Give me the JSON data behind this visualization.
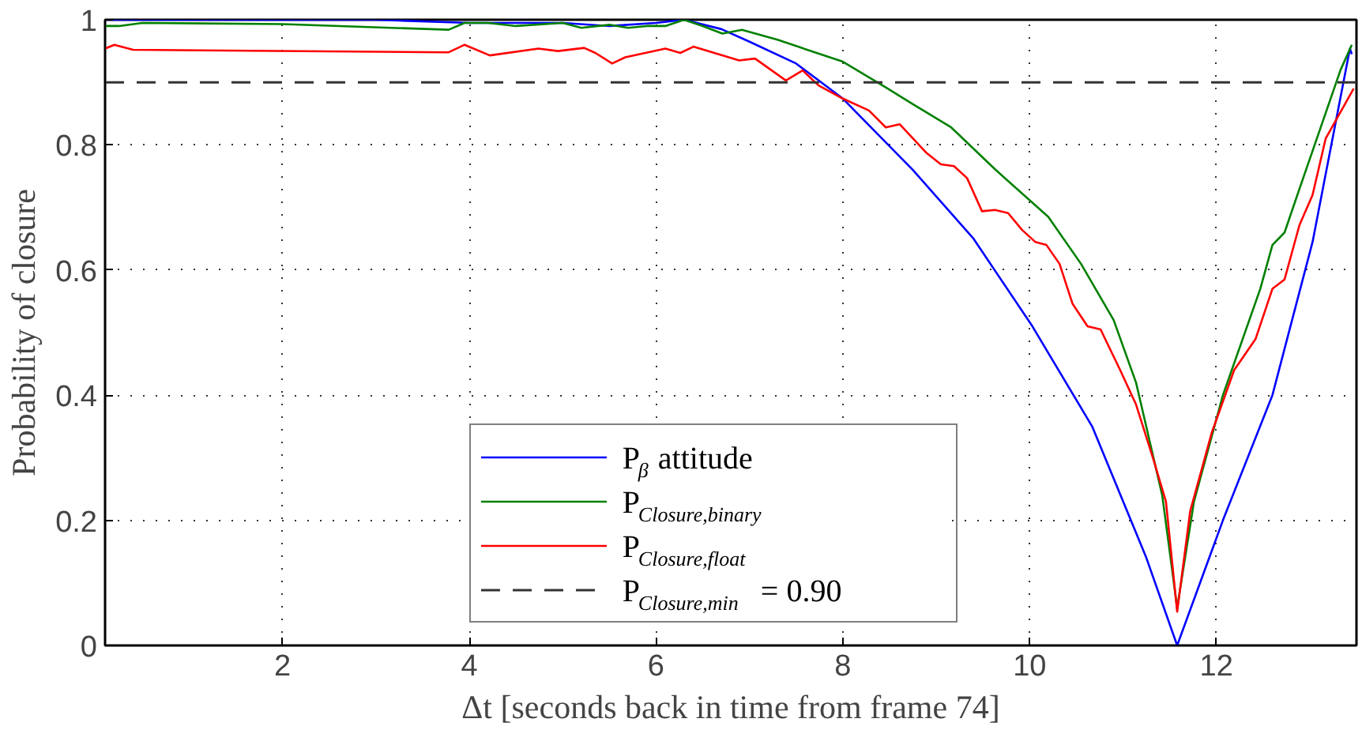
{
  "chart_data": {
    "type": "line",
    "xlabel": "Δt [seconds back in time from frame 74]",
    "ylabel": "Probability of closure",
    "xlim": [
      0.1,
      13.5
    ],
    "ylim": [
      0,
      1
    ],
    "xticks": [
      2,
      4,
      6,
      8,
      10,
      12
    ],
    "yticks": [
      0,
      0.2,
      0.4,
      0.6,
      0.8,
      1
    ],
    "grid": true,
    "legend": "bottom",
    "line_style": "solid",
    "marker": "none",
    "ref_lines": [
      {
        "axis": "y",
        "value": 0.9,
        "label": "P$_{Closure,min}$ = 0.90",
        "color": "#333333",
        "line_style": "dashed"
      }
    ],
    "series": [
      {
        "name": "P$_{β}$ attitude",
        "color": "#0000ff",
        "x": [
          0.1,
          1,
          2,
          3,
          4,
          5,
          5.5,
          6,
          6.3,
          6.7,
          7.0,
          7.5,
          8.0,
          8.75,
          9.4,
          10.03,
          10.67,
          11.25,
          11.58,
          12.07,
          12.6,
          13.03,
          13.43,
          13.45
        ],
        "values": [
          1.0,
          1.0,
          1.0,
          1.0,
          0.995,
          0.995,
          0.99,
          0.995,
          1.0,
          0.985,
          0.965,
          0.93,
          0.874,
          0.76,
          0.65,
          0.51,
          0.35,
          0.14,
          0.0,
          0.2,
          0.4,
          0.645,
          0.954,
          0.945
        ]
      },
      {
        "name": "P$_{Closure,binary}$",
        "color": "#008000",
        "x": [
          0.1,
          0.25,
          0.5,
          2,
          3.78,
          3.95,
          4.2,
          4.5,
          5.0,
          5.2,
          5.5,
          5.7,
          5.9,
          6.1,
          6.3,
          6.5,
          6.71,
          6.92,
          7.3,
          8.0,
          8.46,
          8.75,
          9.16,
          9.63,
          10.2,
          10.55,
          10.9,
          11.14,
          11.42,
          11.58,
          11.76,
          12.07,
          12.47,
          12.6,
          12.73,
          12.89,
          13.33,
          13.45
        ],
        "values": [
          0.99,
          0.99,
          0.995,
          0.993,
          0.984,
          0.995,
          0.995,
          0.99,
          0.995,
          0.987,
          0.992,
          0.987,
          0.99,
          0.99,
          1.0,
          0.99,
          0.978,
          0.984,
          0.968,
          0.933,
          0.892,
          0.865,
          0.828,
          0.761,
          0.685,
          0.61,
          0.52,
          0.42,
          0.24,
          0.06,
          0.23,
          0.4,
          0.57,
          0.64,
          0.66,
          0.73,
          0.92,
          0.96
        ]
      },
      {
        "name": "P$_{Closure,float}$",
        "color": "#ff0000",
        "x": [
          0.1,
          0.2,
          0.4,
          3.78,
          3.95,
          4.22,
          4.74,
          4.95,
          5.23,
          5.35,
          5.53,
          5.67,
          6.1,
          6.26,
          6.4,
          6.89,
          7.06,
          7.39,
          7.57,
          7.74,
          8.0,
          8.28,
          8.46,
          8.61,
          8.89,
          9.05,
          9.19,
          9.33,
          9.49,
          9.63,
          9.77,
          9.92,
          10.06,
          10.18,
          10.32,
          10.46,
          10.62,
          10.76,
          10.97,
          11.14,
          11.32,
          11.46,
          11.58,
          11.72,
          11.95,
          12.19,
          12.42,
          12.6,
          12.73,
          12.89,
          13.03,
          13.17,
          13.47
        ],
        "values": [
          0.954,
          0.96,
          0.952,
          0.948,
          0.96,
          0.943,
          0.954,
          0.95,
          0.955,
          0.947,
          0.93,
          0.94,
          0.954,
          0.947,
          0.957,
          0.935,
          0.938,
          0.903,
          0.919,
          0.895,
          0.874,
          0.855,
          0.828,
          0.833,
          0.788,
          0.769,
          0.766,
          0.747,
          0.694,
          0.696,
          0.691,
          0.664,
          0.645,
          0.64,
          0.61,
          0.546,
          0.51,
          0.505,
          0.44,
          0.385,
          0.3,
          0.23,
          0.054,
          0.215,
          0.34,
          0.44,
          0.49,
          0.57,
          0.585,
          0.672,
          0.72,
          0.81,
          0.89
        ]
      }
    ]
  }
}
